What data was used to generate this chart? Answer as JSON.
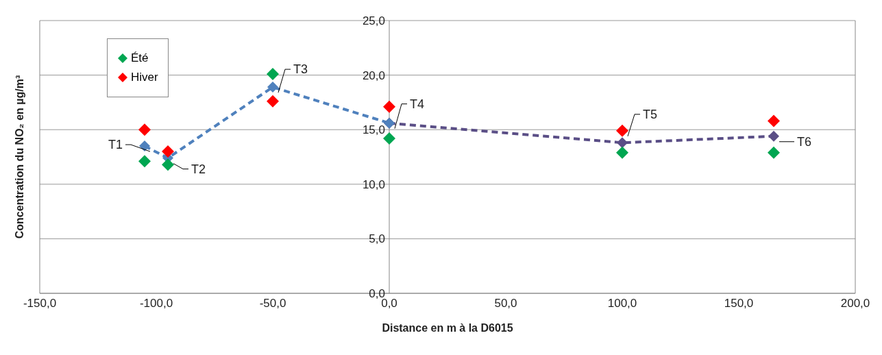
{
  "chart_data": {
    "type": "scatter",
    "xlabel": "Distance en m à la D6015",
    "ylabel": "Concentration du NO₂ en µg/m³",
    "xlim": [
      -150,
      200
    ],
    "ylim": [
      0,
      25
    ],
    "xticks": [
      {
        "value": -150,
        "label": "-150,0"
      },
      {
        "value": -100,
        "label": "-100,0"
      },
      {
        "value": -50,
        "label": "-50,0"
      },
      {
        "value": 0,
        "label": "0,0"
      },
      {
        "value": 50,
        "label": "50,0"
      },
      {
        "value": 100,
        "label": "100,0"
      },
      {
        "value": 150,
        "label": "150,0"
      },
      {
        "value": 200,
        "label": "200,0"
      }
    ],
    "yticks": [
      {
        "value": 0,
        "label": "0,0"
      },
      {
        "value": 5,
        "label": "5,0"
      },
      {
        "value": 10,
        "label": "10,0"
      },
      {
        "value": 15,
        "label": "15,0"
      },
      {
        "value": 20,
        "label": "20,0"
      },
      {
        "value": 25,
        "label": "25,0"
      }
    ],
    "x": [
      -105,
      -95,
      -50,
      0,
      100,
      165
    ],
    "series": [
      {
        "name": "Été",
        "color": "#00a651",
        "values": [
          12.1,
          11.8,
          20.1,
          14.2,
          12.9,
          12.9
        ]
      },
      {
        "name": "Hiver",
        "color": "#ff0000",
        "values": [
          15.0,
          13.0,
          17.6,
          17.1,
          14.9,
          15.8
        ]
      },
      {
        "type": "line",
        "color": "#4f81bd",
        "line_style": "dashed",
        "x": [
          -105,
          -95,
          -50,
          0
        ],
        "values": [
          13.5,
          12.4,
          18.9,
          15.6
        ]
      },
      {
        "type": "line",
        "color": "#5a4e86",
        "line_style": "dashed",
        "x": [
          0,
          100,
          165
        ],
        "values": [
          15.6,
          13.8,
          14.4
        ]
      }
    ],
    "annotations": [
      {
        "text": "T1",
        "x": -105,
        "y": 13.5
      },
      {
        "text": "T2",
        "x": -95,
        "y": 12.4
      },
      {
        "text": "T3",
        "x": -50,
        "y": 18.9
      },
      {
        "text": "T4",
        "x": 0,
        "y": 15.6
      },
      {
        "text": "T5",
        "x": 100,
        "y": 14.9
      },
      {
        "text": "T6",
        "x": 165,
        "y": 14.4
      }
    ],
    "grid": "y",
    "legend": "top left",
    "marker": "diamond"
  }
}
